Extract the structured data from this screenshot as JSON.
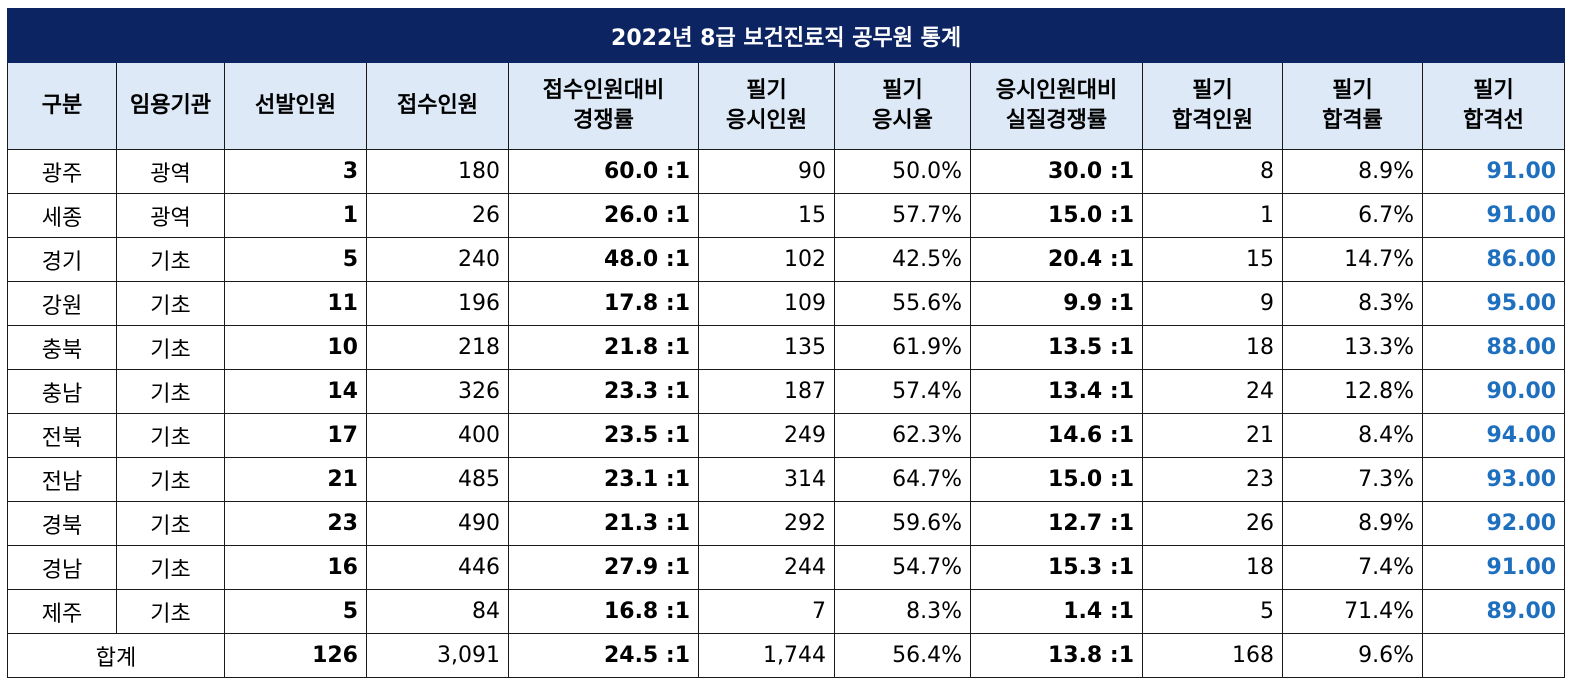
{
  "title": "2022년 8급 보건진료직 공무원 통계",
  "headers": [
    [
      "구분"
    ],
    [
      "임용기관"
    ],
    [
      "선발인원"
    ],
    [
      "접수인원"
    ],
    [
      "접수인원대비",
      "경쟁률"
    ],
    [
      "필기",
      "응시인원"
    ],
    [
      "필기",
      "응시율"
    ],
    [
      "응시인원대비",
      "실질경쟁률"
    ],
    [
      "필기",
      "합격인원"
    ],
    [
      "필기",
      "합격률"
    ],
    [
      "필기",
      "합격선"
    ]
  ],
  "rows": [
    [
      "광주",
      "광역",
      "3",
      "180",
      "60.0 :1",
      "90",
      "50.0%",
      "30.0 :1",
      "8",
      "8.9%",
      "91.00"
    ],
    [
      "세종",
      "광역",
      "1",
      "26",
      "26.0 :1",
      "15",
      "57.7%",
      "15.0 :1",
      "1",
      "6.7%",
      "91.00"
    ],
    [
      "경기",
      "기초",
      "5",
      "240",
      "48.0 :1",
      "102",
      "42.5%",
      "20.4 :1",
      "15",
      "14.7%",
      "86.00"
    ],
    [
      "강원",
      "기초",
      "11",
      "196",
      "17.8 :1",
      "109",
      "55.6%",
      "9.9 :1",
      "9",
      "8.3%",
      "95.00"
    ],
    [
      "충북",
      "기초",
      "10",
      "218",
      "21.8 :1",
      "135",
      "61.9%",
      "13.5 :1",
      "18",
      "13.3%",
      "88.00"
    ],
    [
      "충남",
      "기초",
      "14",
      "326",
      "23.3 :1",
      "187",
      "57.4%",
      "13.4 :1",
      "24",
      "12.8%",
      "90.00"
    ],
    [
      "전북",
      "기초",
      "17",
      "400",
      "23.5 :1",
      "249",
      "62.3%",
      "14.6 :1",
      "21",
      "8.4%",
      "94.00"
    ],
    [
      "전남",
      "기초",
      "21",
      "485",
      "23.1 :1",
      "314",
      "64.7%",
      "15.0 :1",
      "23",
      "7.3%",
      "93.00"
    ],
    [
      "경북",
      "기초",
      "23",
      "490",
      "21.3 :1",
      "292",
      "59.6%",
      "12.7 :1",
      "26",
      "8.9%",
      "92.00"
    ],
    [
      "경남",
      "기초",
      "16",
      "446",
      "27.9 :1",
      "244",
      "54.7%",
      "15.3 :1",
      "18",
      "7.4%",
      "91.00"
    ],
    [
      "제주",
      "기초",
      "5",
      "84",
      "16.8 :1",
      "7",
      "8.3%",
      "1.4 :1",
      "5",
      "71.4%",
      "89.00"
    ]
  ],
  "total": {
    "label": "합계",
    "values": [
      "126",
      "3,091",
      "24.5 :1",
      "1,744",
      "56.4%",
      "13.8 :1",
      "168",
      "9.6%",
      ""
    ]
  },
  "colors": {
    "title_bg": "#0c2461",
    "header_bg": "#dde9f6",
    "cutoff_text": "#1f6fbf"
  }
}
